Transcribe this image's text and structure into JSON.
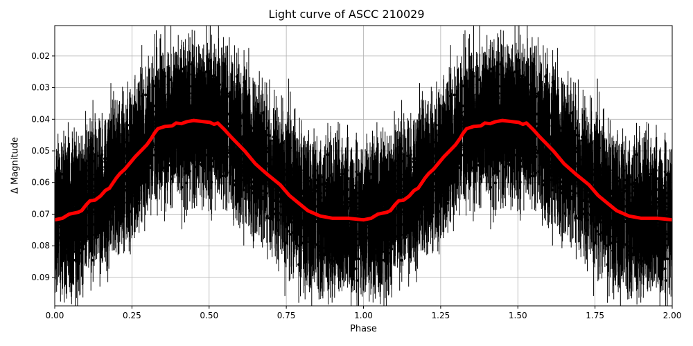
{
  "chart_data": {
    "type": "scatter",
    "title": "Light curve of ASCC 210029",
    "xlabel": "Phase",
    "ylabel": "Δ Magnitude",
    "xlim": [
      0.0,
      2.0
    ],
    "ylim": [
      0.099,
      0.0104
    ],
    "y_inverted": true,
    "grid": true,
    "legend": null,
    "x_ticks": [
      0.0,
      0.25,
      0.5,
      0.75,
      1.0,
      1.25,
      1.5,
      1.75,
      2.0
    ],
    "x_tick_labels": [
      "0.00",
      "0.25",
      "0.50",
      "0.75",
      "1.00",
      "1.25",
      "1.50",
      "1.75",
      "2.00"
    ],
    "y_ticks": [
      0.02,
      0.03,
      0.04,
      0.05,
      0.06,
      0.07,
      0.08,
      0.09
    ],
    "y_tick_labels": [
      "0.02",
      "0.03",
      "0.04",
      "0.05",
      "0.06",
      "0.07",
      "0.08",
      "0.09"
    ],
    "series": [
      {
        "name": "observations",
        "style": "black points with error bars",
        "color": "#000000",
        "description": "Dense cloud of thousands of phase-folded measurements with vertical error bars, spanning roughly 0.01-0.099 mag; follows the binned curve with ~±0.02 scatter"
      },
      {
        "name": "binned model",
        "style": "thick red line",
        "color": "#ff0000",
        "x": [
          0.0,
          0.025,
          0.047,
          0.076,
          0.087,
          0.103,
          0.114,
          0.13,
          0.148,
          0.164,
          0.177,
          0.2,
          0.211,
          0.227,
          0.244,
          0.261,
          0.283,
          0.298,
          0.312,
          0.323,
          0.334,
          0.357,
          0.38,
          0.393,
          0.41,
          0.427,
          0.45,
          0.503,
          0.516,
          0.528,
          0.55,
          0.57,
          0.594,
          0.616,
          0.65,
          0.687,
          0.73,
          0.76,
          0.786,
          0.82,
          0.86,
          0.9,
          0.95,
          1.0,
          1.025,
          1.047,
          1.076,
          1.087,
          1.103,
          1.114,
          1.13,
          1.148,
          1.164,
          1.177,
          1.2,
          1.211,
          1.227,
          1.244,
          1.261,
          1.283,
          1.298,
          1.312,
          1.323,
          1.334,
          1.357,
          1.38,
          1.393,
          1.41,
          1.427,
          1.45,
          1.503,
          1.516,
          1.528,
          1.55,
          1.57,
          1.594,
          1.616,
          1.65,
          1.687,
          1.73,
          1.76,
          1.786,
          1.82,
          1.86,
          1.9,
          1.95,
          2.0
        ],
        "y": [
          0.0718,
          0.0713,
          0.07,
          0.0694,
          0.0689,
          0.0669,
          0.0658,
          0.0656,
          0.0643,
          0.0625,
          0.0618,
          0.0585,
          0.0572,
          0.0558,
          0.0538,
          0.0518,
          0.0496,
          0.0481,
          0.0462,
          0.0444,
          0.043,
          0.0423,
          0.0421,
          0.0412,
          0.0414,
          0.0408,
          0.0404,
          0.041,
          0.0416,
          0.0412,
          0.0433,
          0.0455,
          0.0479,
          0.0501,
          0.0541,
          0.0573,
          0.0607,
          0.0641,
          0.0662,
          0.0689,
          0.0706,
          0.0713,
          0.0713,
          0.0718,
          0.0713,
          0.07,
          0.0694,
          0.0689,
          0.0669,
          0.0658,
          0.0656,
          0.0643,
          0.0625,
          0.0618,
          0.0585,
          0.0572,
          0.0558,
          0.0538,
          0.0518,
          0.0496,
          0.0481,
          0.0462,
          0.0444,
          0.043,
          0.0423,
          0.0421,
          0.0412,
          0.0414,
          0.0408,
          0.0404,
          0.041,
          0.0416,
          0.0412,
          0.0433,
          0.0455,
          0.0479,
          0.0501,
          0.0541,
          0.0573,
          0.0607,
          0.0641,
          0.0662,
          0.0689,
          0.0706,
          0.0713,
          0.0713,
          0.0718
        ]
      }
    ],
    "annotations": []
  }
}
